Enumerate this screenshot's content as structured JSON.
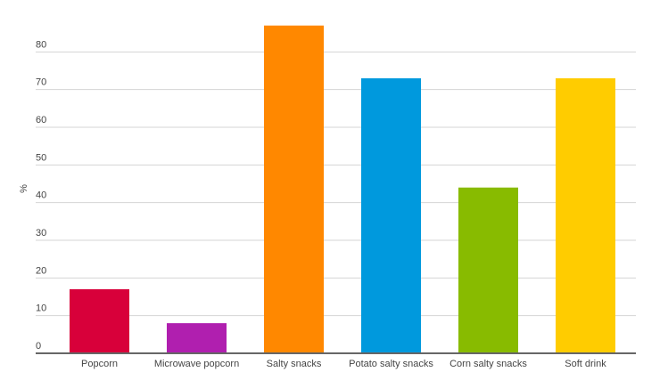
{
  "chart_data": {
    "type": "bar",
    "y_label": "%",
    "categories": [
      "Popcorn",
      "Microwave popcorn",
      "Salty snacks",
      "Potato salty snacks",
      "Corn salty snacks",
      "Soft drink"
    ],
    "values": [
      17,
      8,
      87,
      73,
      44,
      73
    ],
    "colors": [
      "#d8003a",
      "#b01faf",
      "#ff8800",
      "#0099dd",
      "#88bb00",
      "#ffcc00"
    ],
    "ylim": [
      0,
      90
    ],
    "yticks": [
      0,
      10,
      20,
      30,
      40,
      50,
      60,
      70,
      80
    ],
    "grid": true
  }
}
